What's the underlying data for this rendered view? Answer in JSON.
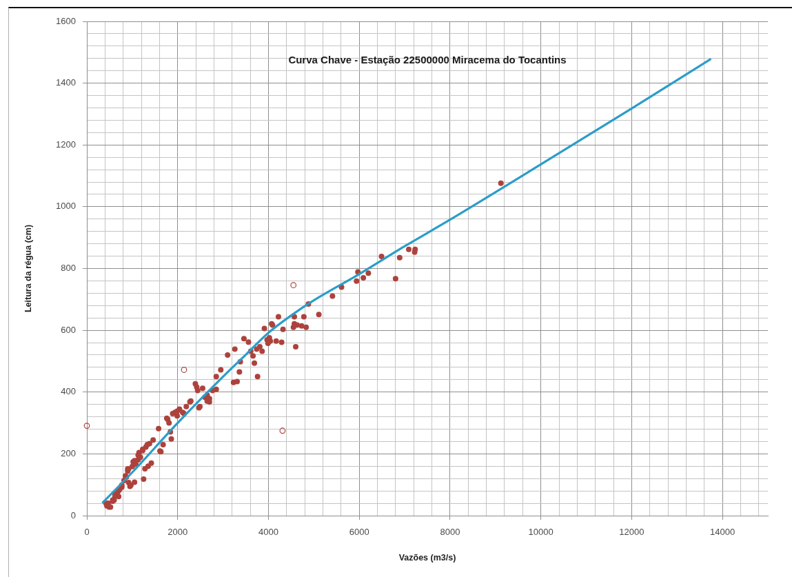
{
  "chart_data": {
    "type": "scatter",
    "title": "Curva Chave - Estação 22500000 Miracema do Tocantins",
    "xlabel": "Vazões (m3/s)",
    "ylabel": "Leitura da régua (cm)",
    "xlim": [
      0,
      15000
    ],
    "ylim": [
      0,
      1600
    ],
    "xticks": [
      0,
      {
        "value": 400,
        "label": null
      },
      {
        "value": 800,
        "label": null
      },
      {
        "value": 1200,
        "label": null
      },
      {
        "value": 1600,
        "label": null
      },
      2000,
      {
        "value": 2400,
        "label": null
      },
      {
        "value": 2800,
        "label": null
      },
      {
        "value": 3200,
        "label": null
      },
      {
        "value": 3600,
        "label": null
      },
      4000,
      {
        "value": 4400,
        "label": null
      },
      {
        "value": 4800,
        "label": null
      },
      {
        "value": 5200,
        "label": null
      },
      {
        "value": 5600,
        "label": null
      },
      6000,
      {
        "value": 6400,
        "label": null
      },
      {
        "value": 6800,
        "label": null
      },
      {
        "value": 7200,
        "label": null
      },
      {
        "value": 7600,
        "label": null
      },
      8000,
      {
        "value": 8400,
        "label": null
      },
      {
        "value": 8800,
        "label": null
      },
      {
        "value": 9200,
        "label": null
      },
      {
        "value": 9600,
        "label": null
      },
      10000,
      {
        "value": 10400,
        "label": null
      },
      {
        "value": 10800,
        "label": null
      },
      {
        "value": 11200,
        "label": null
      },
      {
        "value": 11600,
        "label": null
      },
      12000,
      {
        "value": 12400,
        "label": null
      },
      {
        "value": 12800,
        "label": null
      },
      {
        "value": 13200,
        "label": null
      },
      {
        "value": 13600,
        "label": null
      },
      14000,
      {
        "value": 14400,
        "label": null
      },
      {
        "value": 14800,
        "label": null
      }
    ],
    "yticks": [
      0,
      {
        "value": 40,
        "label": null
      },
      {
        "value": 80,
        "label": null
      },
      {
        "value": 120,
        "label": null
      },
      {
        "value": 160,
        "label": null
      },
      200,
      {
        "value": 240,
        "label": null
      },
      {
        "value": 280,
        "label": null
      },
      {
        "value": 320,
        "label": null
      },
      {
        "value": 360,
        "label": null
      },
      400,
      {
        "value": 440,
        "label": null
      },
      {
        "value": 480,
        "label": null
      },
      {
        "value": 520,
        "label": null
      },
      {
        "value": 560,
        "label": null
      },
      600,
      {
        "value": 640,
        "label": null
      },
      {
        "value": 680,
        "label": null
      },
      {
        "value": 720,
        "label": null
      },
      {
        "value": 760,
        "label": null
      },
      800,
      {
        "value": 840,
        "label": null
      },
      {
        "value": 880,
        "label": null
      },
      {
        "value": 920,
        "label": null
      },
      {
        "value": 960,
        "label": null
      },
      1000,
      {
        "value": 1040,
        "label": null
      },
      {
        "value": 1080,
        "label": null
      },
      {
        "value": 1120,
        "label": null
      },
      {
        "value": 1160,
        "label": null
      },
      1200,
      {
        "value": 1240,
        "label": null
      },
      {
        "value": 1280,
        "label": null
      },
      {
        "value": 1320,
        "label": null
      },
      {
        "value": 1360,
        "label": null
      },
      1400,
      {
        "value": 1440,
        "label": null
      },
      {
        "value": 1480,
        "label": null
      },
      {
        "value": 1520,
        "label": null
      },
      {
        "value": 1560,
        "label": null
      },
      1600
    ],
    "grid": true,
    "marker": "circle",
    "series": [
      {
        "color": "#ad423c",
        "x": [
          420,
          440,
          490,
          520,
          470,
          570,
          570,
          600,
          620,
          620,
          670,
          700,
          700,
          720,
          770,
          770,
          820,
          870,
          850,
          900,
          900,
          920,
          920,
          950,
          970,
          1000,
          1020,
          1050,
          1050,
          1080,
          1130,
          1130,
          1150,
          1180,
          1230,
          1230,
          1250,
          1280,
          1300,
          1330,
          1350,
          1380,
          1420,
          1460,
          1580,
          1610,
          1630,
          1680,
          1760,
          1780,
          1810,
          1840,
          1860,
          1890,
          1940,
          1990,
          1990,
          2040,
          2110,
          2140,
          2190,
          2270,
          2290,
          2390,
          2420,
          2440,
          2470,
          2490,
          2550,
          2600,
          2650,
          2650,
          2700,
          2700,
          2770,
          2850,
          2850,
          2950,
          3100,
          3230,
          3260,
          3310,
          3360,
          3380,
          3460,
          3560,
          3610,
          3660,
          3690,
          3740,
          3760,
          3810,
          3860,
          3910,
          3970,
          3990,
          4020,
          4040,
          4070,
          4090,
          4170,
          4220,
          4290,
          4320,
          4550,
          4570,
          4570,
          4600,
          4630,
          4730,
          4780,
          4830,
          4880,
          5110,
          5410,
          5610,
          5940,
          5970,
          6090,
          6200,
          6490,
          6800,
          6890,
          7090,
          7220,
          7230,
          9120
        ],
        "values": [
          40,
          32,
          28,
          28,
          40,
          47,
          51,
          50,
          69,
          62,
          73,
          81,
          62,
          84,
          92,
          99,
          114,
          125,
          129,
          144,
          151,
          107,
          151,
          95,
          99,
          159,
          174,
          178,
          108,
          166,
          181,
          196,
          204,
          189,
          211,
          215,
          118,
          152,
          222,
          230,
          160,
          233,
          170,
          245,
          282,
          209,
          207,
          230,
          315,
          312,
          300,
          271,
          248,
          330,
          334,
          323,
          338,
          345,
          334,
          330,
          353,
          368,
          371,
          427,
          416,
          405,
          349,
          353,
          412,
          383,
          371,
          390,
          368,
          379,
          405,
          409,
          450,
          472,
          520,
          431,
          539,
          434,
          465,
          498,
          573,
          562,
          532,
          517,
          494,
          539,
          450,
          547,
          532,
          606,
          569,
          558,
          576,
          565,
          621,
          617,
          565,
          644,
          561,
          603,
          610,
          621,
          644,
          547,
          617,
          614,
          644,
          610,
          685,
          651,
          711,
          740,
          759,
          789,
          770,
          785,
          839,
          767,
          835,
          862,
          853,
          862,
          1076
        ]
      },
      {
        "color": "#ad423c",
        "x": [
          0,
          2140,
          4550,
          4310
        ],
        "values": [
          291,
          472,
          746,
          275
        ]
      },
      {
        "type": "line",
        "color": "#2b9dc8",
        "marker": "none",
        "line_style": "solid",
        "x": [
          354,
          1000,
          2000,
          3000,
          3500,
          4000,
          4500,
          5000,
          6000,
          7000,
          8000,
          10000,
          12000,
          13730
        ],
        "values": [
          43,
          140,
          300,
          450,
          521,
          592,
          648,
          697,
          782,
          872,
          958,
          1137,
          1318,
          1477
        ]
      }
    ]
  }
}
